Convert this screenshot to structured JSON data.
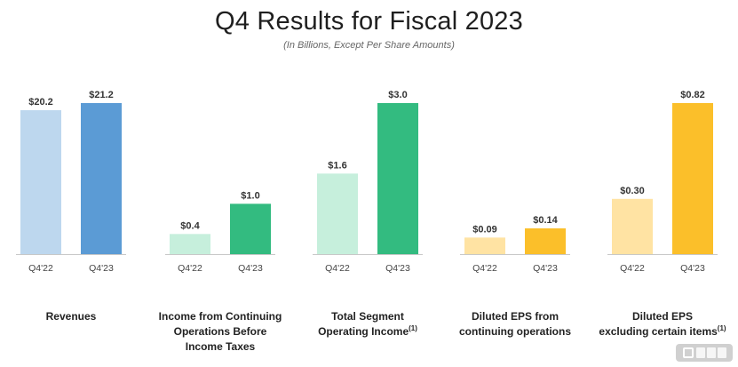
{
  "header": {
    "title": "Q4 Results for Fiscal 2023",
    "subtitle": "(In Billions, Except Per Share Amounts)"
  },
  "chart_data": [
    {
      "type": "bar",
      "title": "Revenues",
      "title_sup": "",
      "categories": [
        "Q4'22",
        "Q4'23"
      ],
      "values": [
        20.2,
        21.2
      ],
      "labels": [
        "$20.2",
        "$21.2"
      ],
      "ylim": [
        0,
        21.2
      ],
      "colors": [
        "#bdd7ee",
        "#5b9bd5"
      ]
    },
    {
      "type": "bar",
      "title": "Income from Continuing\nOperations Before\nIncome Taxes",
      "title_sup": "",
      "categories": [
        "Q4'22",
        "Q4'23"
      ],
      "values": [
        0.4,
        1.0
      ],
      "labels": [
        "$0.4",
        "$1.0"
      ],
      "ylim": [
        0,
        3.0
      ],
      "colors": [
        "#c6efdc",
        "#33bb80"
      ]
    },
    {
      "type": "bar",
      "title": "Total Segment\nOperating Income",
      "title_sup": "(1)",
      "categories": [
        "Q4'22",
        "Q4'23"
      ],
      "values": [
        1.6,
        3.0
      ],
      "labels": [
        "$1.6",
        "$3.0"
      ],
      "ylim": [
        0,
        3.0
      ],
      "colors": [
        "#c6efdc",
        "#33bb80"
      ]
    },
    {
      "type": "bar",
      "title": "Diluted EPS from\ncontinuing operations",
      "title_sup": "",
      "categories": [
        "Q4'22",
        "Q4'23"
      ],
      "values": [
        0.09,
        0.14
      ],
      "labels": [
        "$0.09",
        "$0.14"
      ],
      "ylim": [
        0,
        0.82
      ],
      "colors": [
        "#ffe3a3",
        "#fbbf2a"
      ]
    },
    {
      "type": "bar",
      "title": "Diluted EPS\nexcluding certain items",
      "title_sup": "(1)",
      "categories": [
        "Q4'22",
        "Q4'23"
      ],
      "values": [
        0.3,
        0.82
      ],
      "labels": [
        "$0.30",
        "$0.82"
      ],
      "ylim": [
        0,
        0.82
      ],
      "colors": [
        "#ffe3a3",
        "#fbbf2a"
      ]
    }
  ],
  "colors": {
    "axis": "#c8c8c8"
  },
  "watermark": {
    "icon": "brand-logo-icon"
  }
}
